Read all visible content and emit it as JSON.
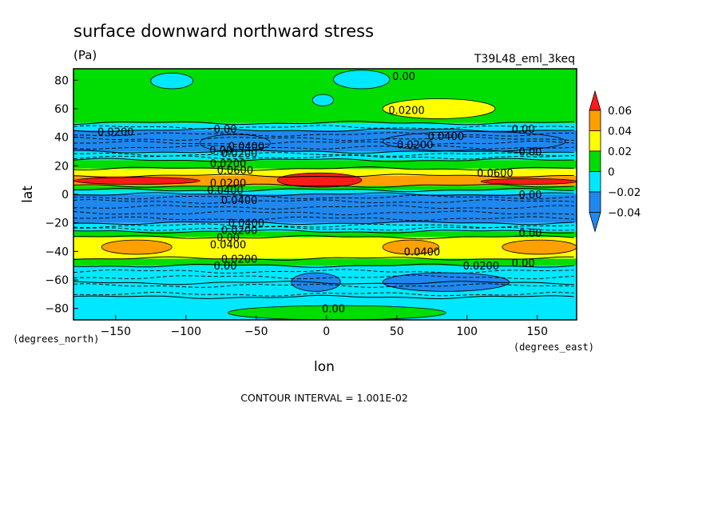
{
  "chart_data": {
    "type": "heatmap",
    "title": "surface downward northward stress",
    "units": "(Pa)",
    "run_label": "T39L48_eml_3keq",
    "xlabel": "lon",
    "ylabel": "lat",
    "x_units": "(degrees_east)",
    "y_units": "(degrees_north)",
    "xlim": [
      -180,
      178
    ],
    "ylim": [
      -88,
      88
    ],
    "x_ticks": [
      -150,
      -100,
      -50,
      0,
      50,
      100,
      150
    ],
    "y_ticks": [
      -80,
      -60,
      -40,
      -20,
      0,
      20,
      40,
      60,
      80
    ],
    "x_tick_labels": [
      "−150",
      "−100",
      "−50",
      "0",
      "50",
      "100",
      "150"
    ],
    "y_tick_labels": [
      "−80",
      "−60",
      "−40",
      "−20",
      "0",
      "20",
      "40",
      "60",
      "80"
    ],
    "contour_interval_text": "CONTOUR INTERVAL = 1.001E-02",
    "colorbar": {
      "levels": [
        -0.04,
        -0.02,
        0,
        0.02,
        0.04,
        0.06
      ],
      "labels": [
        "−0.04",
        "−0.02",
        "0",
        "0.02",
        "0.04",
        "0.06"
      ],
      "colors": [
        "#1e88ee",
        "#00e8ff",
        "#00dd00",
        "#ffff00",
        "#ffa000",
        "#ff1a1a"
      ],
      "extends": "both"
    },
    "bands": [
      {
        "lat_range": [
          -88,
          -72
        ],
        "color": "#00e8ff"
      },
      {
        "lat_range": [
          -72,
          -62
        ],
        "color": "#00e8ff"
      },
      {
        "lat_range": [
          -62,
          -50
        ],
        "color": "#00e8ff"
      },
      {
        "lat_range": [
          -50,
          -45
        ],
        "color": "#00dd00"
      },
      {
        "lat_range": [
          -45,
          -30
        ],
        "color": "#ffff00"
      },
      {
        "lat_range": [
          -30,
          -26
        ],
        "color": "#00dd00"
      },
      {
        "lat_range": [
          -26,
          -20
        ],
        "color": "#00e8ff"
      },
      {
        "lat_range": [
          -20,
          0
        ],
        "color": "#1e88ee"
      },
      {
        "lat_range": [
          0,
          3
        ],
        "color": "#00e8ff"
      },
      {
        "lat_range": [
          3,
          6
        ],
        "color": "#00dd00"
      },
      {
        "lat_range": [
          6,
          13
        ],
        "color": "#ffa000"
      },
      {
        "lat_range": [
          13,
          18
        ],
        "color": "#ffff00"
      },
      {
        "lat_range": [
          18,
          24
        ],
        "color": "#00dd00"
      },
      {
        "lat_range": [
          24,
          30
        ],
        "color": "#00e8ff"
      },
      {
        "lat_range": [
          30,
          45
        ],
        "color": "#1e88ee"
      },
      {
        "lat_range": [
          45,
          50
        ],
        "color": "#00e8ff"
      },
      {
        "lat_range": [
          50,
          88
        ],
        "color": "#00dd00"
      }
    ],
    "regions": [
      {
        "color": "#ff1a1a",
        "lon_range": [
          -35,
          25
        ],
        "lat_range": [
          5,
          15
        ]
      },
      {
        "color": "#ff1a1a",
        "lon_range": [
          -180,
          -90
        ],
        "lat_range": [
          7,
          12
        ]
      },
      {
        "color": "#ff1a1a",
        "lon_range": [
          110,
          178
        ],
        "lat_range": [
          7,
          11
        ]
      },
      {
        "color": "#ffa000",
        "lon_range": [
          -160,
          -110
        ],
        "lat_range": [
          -42,
          -32
        ]
      },
      {
        "color": "#ffa000",
        "lon_range": [
          40,
          80
        ],
        "lat_range": [
          -42,
          -32
        ]
      },
      {
        "color": "#ffa000",
        "lon_range": [
          125,
          178
        ],
        "lat_range": [
          -42,
          -32
        ]
      },
      {
        "color": "#ffff00",
        "lon_range": [
          40,
          120
        ],
        "lat_range": [
          53,
          67
        ]
      },
      {
        "color": "#00e8ff",
        "lon_range": [
          -125,
          -95
        ],
        "lat_range": [
          74,
          85
        ]
      },
      {
        "color": "#00e8ff",
        "lon_range": [
          5,
          45
        ],
        "lat_range": [
          74,
          87
        ]
      },
      {
        "color": "#00e8ff",
        "lon_range": [
          -10,
          5
        ],
        "lat_range": [
          62,
          70
        ]
      },
      {
        "color": "#1e88ee",
        "lon_range": [
          -90,
          -40
        ],
        "lat_range": [
          30,
          42
        ]
      },
      {
        "color": "#1e88ee",
        "lon_range": [
          40,
          170
        ],
        "lat_range": [
          30,
          44
        ]
      },
      {
        "color": "#1e88ee",
        "lon_range": [
          -25,
          10
        ],
        "lat_range": [
          -68,
          -55
        ]
      },
      {
        "color": "#1e88ee",
        "lon_range": [
          40,
          130
        ],
        "lat_range": [
          -68,
          -55
        ]
      },
      {
        "color": "#00dd00",
        "lon_range": [
          -70,
          85
        ],
        "lat_range": [
          -88,
          -78
        ]
      }
    ],
    "contour_labels": [
      {
        "text": "0.00",
        "lon": 55,
        "lat": 83
      },
      {
        "text": "0.0200",
        "lon": 57,
        "lat": 59
      },
      {
        "text": "0.0200",
        "lon": -150,
        "lat": 44
      },
      {
        "text": "0.00",
        "lon": -72,
        "lat": 46
      },
      {
        "text": "0.00",
        "lon": 140,
        "lat": 46
      },
      {
        "text": "0.0400",
        "lon": 85,
        "lat": 41
      },
      {
        "text": "0.0200",
        "lon": 63,
        "lat": 35
      },
      {
        "text": "0.0400",
        "lon": -57,
        "lat": 34
      },
      {
        "text": "0.0200",
        "lon": -62,
        "lat": 29
      },
      {
        "text": "0.00",
        "lon": -75,
        "lat": 31
      },
      {
        "text": "0.00",
        "lon": 145,
        "lat": 30
      },
      {
        "text": "0.0200",
        "lon": -70,
        "lat": 22
      },
      {
        "text": "0.0600",
        "lon": -65,
        "lat": 17
      },
      {
        "text": "0.0600",
        "lon": 120,
        "lat": 15
      },
      {
        "text": "0.0200",
        "lon": -70,
        "lat": 8
      },
      {
        "text": "0.0400",
        "lon": -72,
        "lat": 3
      },
      {
        "text": "0.00",
        "lon": 145,
        "lat": 0
      },
      {
        "text": "0.0400",
        "lon": -62,
        "lat": -4
      },
      {
        "text": "0.0400",
        "lon": -57,
        "lat": -20
      },
      {
        "text": "0.0200",
        "lon": -62,
        "lat": -25
      },
      {
        "text": "0.00",
        "lon": -70,
        "lat": -30
      },
      {
        "text": "0.00",
        "lon": 145,
        "lat": -27
      },
      {
        "text": "0.0400",
        "lon": -70,
        "lat": -35
      },
      {
        "text": "0.0400",
        "lon": 68,
        "lat": -40
      },
      {
        "text": "0.0200",
        "lon": -62,
        "lat": -45
      },
      {
        "text": "0.00",
        "lon": -72,
        "lat": -50
      },
      {
        "text": "0.0200",
        "lon": 110,
        "lat": -50
      },
      {
        "text": "0.00",
        "lon": 140,
        "lat": -48
      },
      {
        "text": "0.00",
        "lon": 5,
        "lat": -80
      }
    ]
  }
}
